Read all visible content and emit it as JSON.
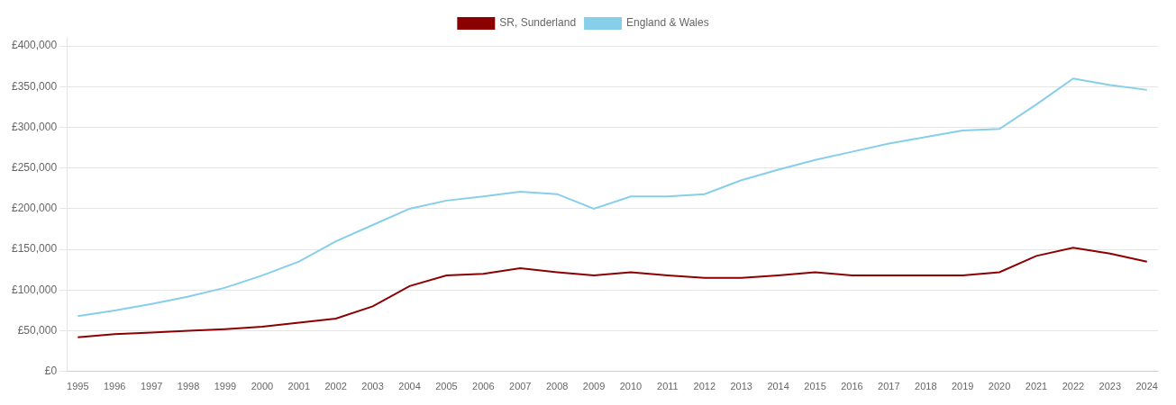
{
  "chart_data": {
    "type": "line",
    "x": [
      1995,
      1996,
      1997,
      1998,
      1999,
      2000,
      2001,
      2002,
      2003,
      2004,
      2005,
      2006,
      2007,
      2008,
      2009,
      2010,
      2011,
      2012,
      2013,
      2014,
      2015,
      2016,
      2017,
      2018,
      2019,
      2020,
      2021,
      2022,
      2023,
      2024
    ],
    "series": [
      {
        "name": "SR, Sunderland",
        "color": "#8B0000",
        "values": [
          42000,
          46000,
          48000,
          50000,
          52000,
          55000,
          60000,
          65000,
          80000,
          105000,
          118000,
          120000,
          127000,
          122000,
          118000,
          122000,
          118000,
          115000,
          115000,
          118000,
          122000,
          118000,
          118000,
          118000,
          118000,
          122000,
          142000,
          152000,
          145000,
          135000
        ]
      },
      {
        "name": "England & Wales",
        "color": "#87CEEB",
        "values": [
          68000,
          75000,
          83000,
          92000,
          103000,
          118000,
          135000,
          160000,
          180000,
          200000,
          210000,
          215000,
          221000,
          218000,
          200000,
          215000,
          215000,
          218000,
          235000,
          248000,
          260000,
          270000,
          280000,
          288000,
          296000,
          298000,
          328000,
          360000,
          352000,
          346000
        ]
      }
    ],
    "xlim": [
      1994.7,
      2024.3
    ],
    "xticks": [
      1995,
      1996,
      1997,
      1998,
      1999,
      2000,
      2001,
      2002,
      2003,
      2004,
      2005,
      2006,
      2007,
      2008,
      2009,
      2010,
      2011,
      2012,
      2013,
      2014,
      2015,
      2016,
      2017,
      2018,
      2019,
      2020,
      2021,
      2022,
      2023,
      2024
    ],
    "ylim": [
      0,
      410000
    ],
    "yticks": [
      {
        "value": 0,
        "label": "£0"
      },
      {
        "value": 50000,
        "label": "£50,000"
      },
      {
        "value": 100000,
        "label": "£100,000"
      },
      {
        "value": 150000,
        "label": "£150,000"
      },
      {
        "value": 200000,
        "label": "£200,000"
      },
      {
        "value": 250000,
        "label": "£250,000"
      },
      {
        "value": 300000,
        "label": "£300,000"
      },
      {
        "value": 350000,
        "label": "£350,000"
      },
      {
        "value": 400000,
        "label": "£400,000"
      }
    ],
    "grid": true,
    "legend": "top"
  }
}
